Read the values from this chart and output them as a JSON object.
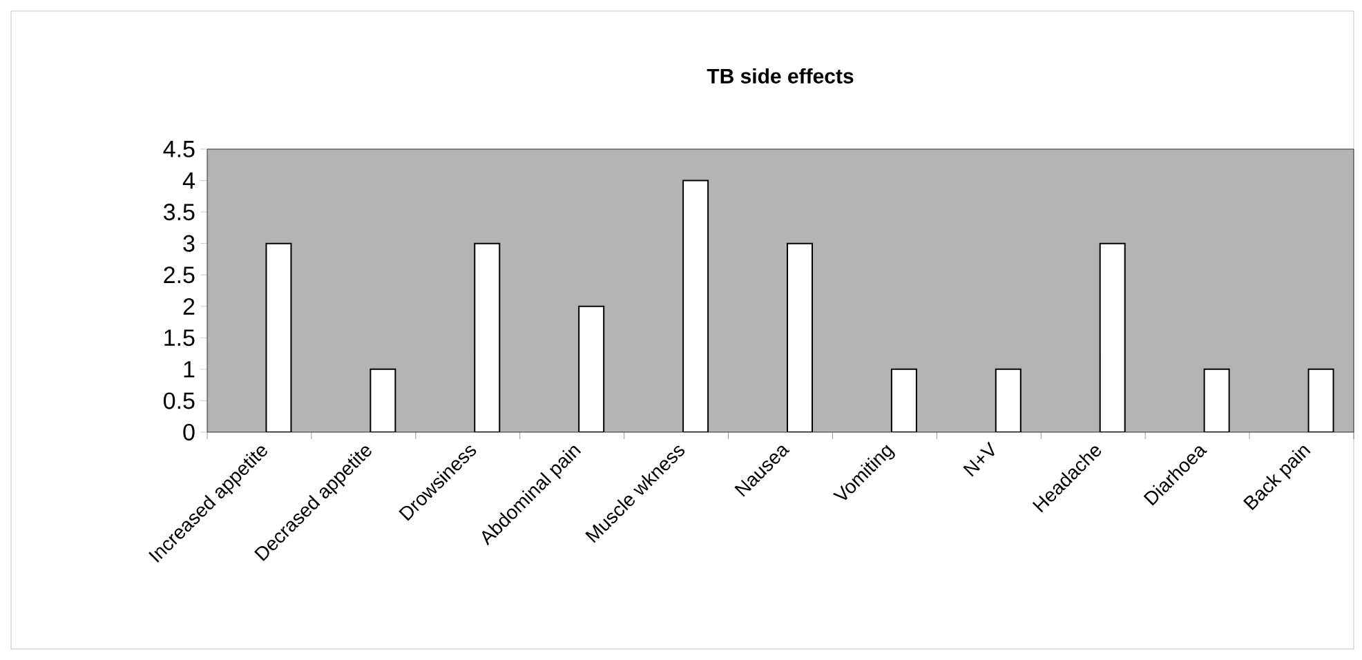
{
  "chart_data": {
    "type": "bar",
    "title": "TB side effects",
    "categories": [
      "Increased appetite",
      "Decrased appetite",
      "Drowsiness",
      "Abdominal pain",
      "Muscle wkness",
      "Nausea",
      "Vomiting",
      "N+V",
      "Headache",
      "Diarhoea",
      "Back pain"
    ],
    "values": [
      3,
      1,
      3,
      2,
      4,
      3,
      1,
      1,
      3,
      1,
      1
    ],
    "color": "#ffffff",
    "ylim": [
      0,
      4.5
    ],
    "yticks": [
      0,
      0.5,
      1,
      1.5,
      2,
      2.5,
      3,
      3.5,
      4,
      4.5
    ],
    "grid": false
  }
}
